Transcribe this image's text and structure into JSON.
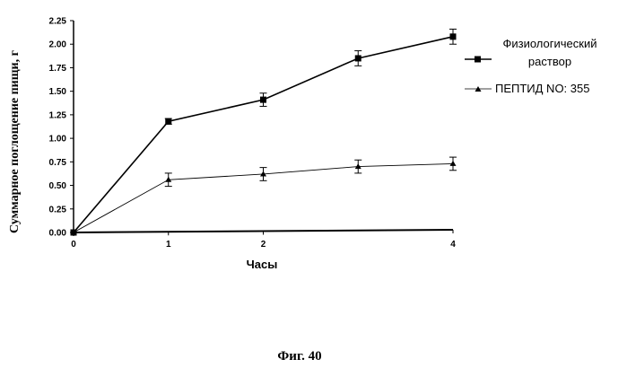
{
  "chart_data": {
    "type": "line",
    "x": [
      0,
      1,
      2,
      3,
      4
    ],
    "xlabel": "Часы",
    "ylabel": "Суммарное поглощение пищи, г",
    "xticks": [
      "0",
      "1",
      "2",
      "4"
    ],
    "xtick_values": [
      0,
      1,
      2,
      4
    ],
    "yticks": [
      "0.00",
      "0.25",
      "0.50",
      "0.75",
      "1.00",
      "1.25",
      "1.50",
      "1.75",
      "2.00",
      "2.25"
    ],
    "ylim": [
      0,
      2.25
    ],
    "xlim": [
      0,
      4
    ],
    "grid": false,
    "legend_position": "right",
    "series": [
      {
        "name_lines": [
          "Физиологический",
          "раствор"
        ],
        "marker": "square",
        "values": [
          0.0,
          1.18,
          1.41,
          1.85,
          2.08
        ],
        "errors": [
          0.0,
          0.03,
          0.07,
          0.08,
          0.08
        ],
        "color": "#000000"
      },
      {
        "name_lines": [
          "ПЕПТИД NO: 355"
        ],
        "marker": "triangle",
        "values": [
          0.0,
          0.56,
          0.62,
          0.7,
          0.73
        ],
        "errors": [
          0.0,
          0.07,
          0.07,
          0.07,
          0.07
        ],
        "color": "#000000"
      }
    ]
  },
  "caption": "Фиг. 40"
}
